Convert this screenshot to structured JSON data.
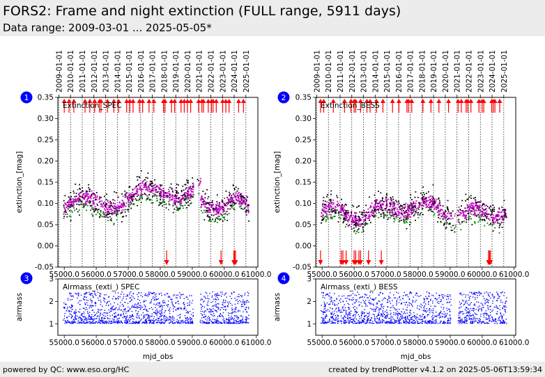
{
  "header": {
    "title": "FORS2: Frame and night extinction (FULL range, 5911 days)",
    "subtitle": "Data range: 2009-03-01 ... 2025-05-05*"
  },
  "footer": {
    "left": "powered by QC: www.eso.org/HC",
    "right": "created by trendPlotter v4.1.2 on 2025-05-06T13:59:34"
  },
  "colors": {
    "data": "#000000",
    "night": "#cc00cc",
    "good": "#008000",
    "outlier": "#ff0000",
    "airmass": "#0000ff",
    "badge": "#0000ff"
  },
  "chart_data": [
    {
      "type": "scatter",
      "panel": "1",
      "annotation": "Extinction_SPEC",
      "ylabel": "extinction_[mag]",
      "xlim": [
        54800,
        61050
      ],
      "ylim": [
        -0.05,
        0.35
      ],
      "yticks": [
        "-0.05",
        "0.00",
        "0.05",
        "0.10",
        "0.15",
        "0.20",
        "0.25",
        "0.30",
        "0.35"
      ],
      "outliers_top_x": [
        55000,
        55150,
        55300,
        55650,
        55800,
        55950,
        56100,
        56150,
        56350,
        56550,
        56700,
        56950,
        57050,
        57150,
        57350,
        57450,
        57650,
        57800,
        58100,
        58150,
        58350,
        58450,
        58650,
        58750,
        58850,
        58950,
        59200,
        59300,
        59350,
        59500,
        59600,
        59650,
        59750,
        59950,
        60050,
        60150,
        60450,
        60600
      ],
      "outliers_bottom_x": [
        58200,
        59900,
        60300,
        60320,
        60350
      ]
    },
    {
      "type": "scatter",
      "panel": "2",
      "annotation": "Extinction_BESS",
      "ylabel": "extinction_[mag]",
      "xlim": [
        54800,
        61050
      ],
      "ylim": [
        -0.05,
        0.35
      ],
      "yticks": [
        "-0.05",
        "0.00",
        "0.05",
        "0.10",
        "0.15",
        "0.20",
        "0.25",
        "0.30",
        "0.35"
      ],
      "outliers_top_x": [
        54950,
        55050,
        55350,
        55700,
        55900,
        56000,
        56050,
        56200,
        56400,
        56500,
        56700,
        56900,
        57200,
        57400,
        57650,
        57700,
        57800,
        58150,
        58400,
        58650,
        58950,
        59250,
        59350,
        59500,
        59550,
        59650,
        59900,
        60000,
        60050,
        60300,
        60350,
        60400,
        60550
      ],
      "outliers_bottom_x": [
        54950,
        55600,
        55650,
        55750,
        56000,
        56050,
        56150,
        56200,
        56450,
        56850,
        60200,
        60230,
        60260
      ]
    },
    {
      "type": "scatter",
      "panel": "3",
      "annotation": "Airmass_(exti_) SPEC",
      "ylabel": "airmass",
      "xlabel": "mjd_obs",
      "xlim": [
        54800,
        61050
      ],
      "ylim": [
        0.5,
        3
      ],
      "yticks": [
        "1",
        "2",
        "3"
      ],
      "xticks": [
        "55000.0",
        "56000.0",
        "57000.0",
        "58000.0",
        "59000.0",
        "60000.0",
        "61000.0"
      ]
    },
    {
      "type": "scatter",
      "panel": "4",
      "annotation": "Airmass_(exti_) BESS",
      "ylabel": "airmass",
      "xlabel": "mjd_obs",
      "xlim": [
        54800,
        61050
      ],
      "ylim": [
        0.5,
        3
      ],
      "yticks": [
        "1",
        "2",
        "3"
      ],
      "xticks": [
        "55000.0",
        "56000.0",
        "57000.0",
        "58000.0",
        "59000.0",
        "60000.0",
        "61000.0"
      ]
    }
  ],
  "date_axis": {
    "labels": [
      "2009-01-01",
      "2010-01-01",
      "2011-01-01",
      "2012-01-01",
      "2013-01-01",
      "2014-01-01",
      "2015-01-01",
      "2016-01-01",
      "2017-01-01",
      "2018-01-01",
      "2019-01-01",
      "2020-01-01",
      "2021-01-01",
      "2022-01-01",
      "2023-01-01",
      "2024-01-01",
      "2025-01-01"
    ],
    "mjd": [
      54832,
      55197,
      55562,
      55927,
      56293,
      56658,
      57023,
      57388,
      57754,
      58119,
      58484,
      58849,
      59215,
      59580,
      59945,
      60310,
      60676
    ]
  }
}
